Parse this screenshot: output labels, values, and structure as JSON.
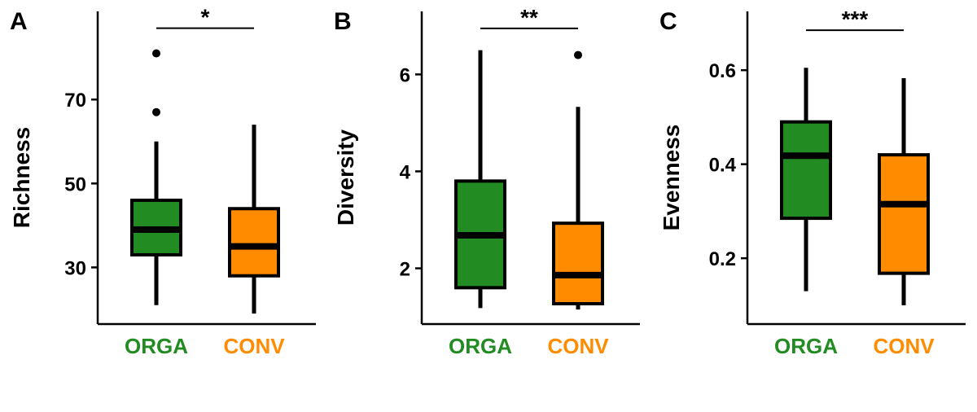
{
  "chart_data": [
    {
      "type": "box",
      "panel_label": "A",
      "ylabel": "Richness",
      "ylim": [
        16.5,
        91
      ],
      "yticks": [
        30,
        50,
        70
      ],
      "categories": [
        "ORGA",
        "CONV"
      ],
      "category_colors": [
        "#228B22",
        "#FF8C00"
      ],
      "boxes": [
        {
          "name": "ORGA",
          "color": "#228B22",
          "whisker_low": 21,
          "q1": 33,
          "median": 39,
          "q3": 46,
          "whisker_high": 60,
          "outliers": [
            67,
            81
          ]
        },
        {
          "name": "CONV",
          "color": "#FF8C00",
          "whisker_low": 19,
          "q1": 28,
          "median": 35,
          "q3": 44,
          "whisker_high": 64,
          "outliers": []
        }
      ],
      "significance": {
        "label": "*",
        "y": 87
      }
    },
    {
      "type": "box",
      "panel_label": "B",
      "ylabel": "Diversity",
      "ylim": [
        0.85,
        7.3
      ],
      "yticks": [
        2,
        4,
        6
      ],
      "categories": [
        "ORGA",
        "CONV"
      ],
      "category_colors": [
        "#228B22",
        "#FF8C00"
      ],
      "boxes": [
        {
          "name": "ORGA",
          "color": "#228B22",
          "whisker_low": 1.18,
          "q1": 1.6,
          "median": 2.68,
          "q3": 3.8,
          "whisker_high": 6.5,
          "outliers": []
        },
        {
          "name": "CONV",
          "color": "#FF8C00",
          "whisker_low": 1.15,
          "q1": 1.27,
          "median": 1.86,
          "q3": 2.93,
          "whisker_high": 5.33,
          "outliers": [
            6.4
          ]
        }
      ],
      "significance": {
        "label": "**",
        "y": 6.95
      }
    },
    {
      "type": "box",
      "panel_label": "C",
      "ylabel": "Evenness",
      "ylim": [
        0.06,
        0.725
      ],
      "yticks": [
        0.2,
        0.4,
        0.6
      ],
      "categories": [
        "ORGA",
        "CONV"
      ],
      "category_colors": [
        "#228B22",
        "#FF8C00"
      ],
      "boxes": [
        {
          "name": "ORGA",
          "color": "#228B22",
          "whisker_low": 0.13,
          "q1": 0.285,
          "median": 0.418,
          "q3": 0.49,
          "whisker_high": 0.605,
          "outliers": []
        },
        {
          "name": "CONV",
          "color": "#FF8C00",
          "whisker_low": 0.1,
          "q1": 0.168,
          "median": 0.315,
          "q3": 0.42,
          "whisker_high": 0.583,
          "outliers": []
        }
      ],
      "significance": {
        "label": "***",
        "y": 0.685
      }
    }
  ]
}
